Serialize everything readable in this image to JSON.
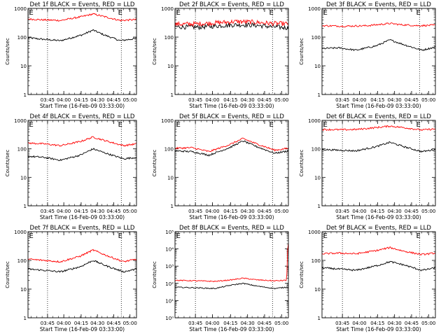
{
  "figure": {
    "xtick_labels": [
      "03:45",
      "04:00",
      "04:15",
      "04:30",
      "04:45",
      "05:00"
    ],
    "xlabel": "Start Time (16-Feb-09 03:33:00)",
    "ylabel": "Counts/sec",
    "colors": {
      "events": "#000000",
      "lld": "#ff0000",
      "axes": "#000000"
    }
  },
  "chart_data": [
    {
      "type": "line",
      "title": "Det 1f BLACK = Events, RED = LLD",
      "ylabel": "Counts/sec",
      "xlabel": "Start Time (16-Feb-09 03:33:00)",
      "yscale": "log",
      "ylim": [
        1,
        1000
      ],
      "yticks": [
        "1",
        "10",
        "100",
        "1000"
      ],
      "xticks": [
        "03:45",
        "04:00",
        "04:15",
        "04:30",
        "04:45",
        "05:00"
      ],
      "markers": [
        "E",
        "E"
      ],
      "series": [
        {
          "key": "events",
          "color": "#000000",
          "anchors": [
            [
              0,
              95
            ],
            [
              0.12,
              85
            ],
            [
              0.3,
              75
            ],
            [
              0.5,
              120
            ],
            [
              0.6,
              175
            ],
            [
              0.7,
              120
            ],
            [
              0.85,
              75
            ],
            [
              1,
              90
            ]
          ]
        },
        {
          "key": "lld",
          "color": "#ff0000",
          "anchors": [
            [
              0,
              430
            ],
            [
              0.12,
              400
            ],
            [
              0.3,
              380
            ],
            [
              0.5,
              520
            ],
            [
              0.6,
              640
            ],
            [
              0.7,
              520
            ],
            [
              0.85,
              380
            ],
            [
              1,
              410
            ]
          ]
        }
      ]
    },
    {
      "type": "line",
      "title": "Det 2f BLACK = Events, RED = LLD",
      "ylabel": "Counts/sec",
      "xlabel": "Start Time (16-Feb-09 03:33:00)",
      "yscale": "log",
      "ylim": [
        1,
        1000
      ],
      "yticks": [
        "1",
        "10",
        "100",
        "1000"
      ],
      "xticks": [
        "03:45",
        "04:00",
        "04:15",
        "04:30",
        "04:45",
        "05:00"
      ],
      "markers": [
        "E",
        "E"
      ],
      "series": [
        {
          "key": "events",
          "color": "#000000",
          "anchors": [
            [
              0,
              230
            ],
            [
              0.2,
              220
            ],
            [
              0.4,
              250
            ],
            [
              0.55,
              270
            ],
            [
              0.7,
              260
            ],
            [
              0.85,
              230
            ],
            [
              1,
              210
            ]
          ]
        },
        {
          "key": "lld",
          "color": "#ff0000",
          "anchors": [
            [
              0,
              280
            ],
            [
              0.2,
              290
            ],
            [
              0.4,
              320
            ],
            [
              0.55,
              350
            ],
            [
              0.7,
              330
            ],
            [
              0.85,
              300
            ],
            [
              1,
              290
            ]
          ]
        }
      ]
    },
    {
      "type": "line",
      "title": "Det 3f BLACK = Events, RED = LLD",
      "ylabel": "Counts/sec",
      "xlabel": "Start Time (16-Feb-09 03:33:00)",
      "yscale": "log",
      "ylim": [
        1,
        1000
      ],
      "yticks": [
        "1",
        "10",
        "100",
        "1000"
      ],
      "xticks": [
        "03:45",
        "04:00",
        "04:15",
        "04:30",
        "04:45",
        "05:00"
      ],
      "markers": [
        "E",
        "E"
      ],
      "series": [
        {
          "key": "events",
          "color": "#000000",
          "anchors": [
            [
              0,
              40
            ],
            [
              0.15,
              42
            ],
            [
              0.3,
              35
            ],
            [
              0.48,
              50
            ],
            [
              0.6,
              80
            ],
            [
              0.72,
              55
            ],
            [
              0.88,
              35
            ],
            [
              1,
              45
            ]
          ]
        },
        {
          "key": "lld",
          "color": "#ff0000",
          "anchors": [
            [
              0,
              250
            ],
            [
              0.2,
              240
            ],
            [
              0.4,
              250
            ],
            [
              0.6,
              300
            ],
            [
              0.7,
              270
            ],
            [
              0.85,
              250
            ],
            [
              1,
              260
            ]
          ]
        }
      ]
    },
    {
      "type": "line",
      "title": "Det 4f BLACK = Events, RED = LLD",
      "ylabel": "Counts/sec",
      "xlabel": "Start Time (16-Feb-09 03:33:00)",
      "yscale": "log",
      "ylim": [
        1,
        1000
      ],
      "yticks": [
        "1",
        "10",
        "100",
        "1000"
      ],
      "xticks": [
        "03:45",
        "04:00",
        "04:15",
        "04:30",
        "04:45",
        "05:00"
      ],
      "markers": [
        "E",
        "E"
      ],
      "series": [
        {
          "key": "events",
          "color": "#000000",
          "anchors": [
            [
              0,
              55
            ],
            [
              0.15,
              50
            ],
            [
              0.3,
              40
            ],
            [
              0.48,
              60
            ],
            [
              0.6,
              100
            ],
            [
              0.72,
              70
            ],
            [
              0.88,
              45
            ],
            [
              1,
              50
            ]
          ]
        },
        {
          "key": "lld",
          "color": "#ff0000",
          "anchors": [
            [
              0,
              160
            ],
            [
              0.15,
              150
            ],
            [
              0.3,
              130
            ],
            [
              0.48,
              180
            ],
            [
              0.6,
              260
            ],
            [
              0.72,
              190
            ],
            [
              0.88,
              130
            ],
            [
              1,
              150
            ]
          ]
        }
      ]
    },
    {
      "type": "line",
      "title": "Det 5f BLACK = Events, RED = LLD",
      "ylabel": "Counts/sec",
      "xlabel": "Start Time (16-Feb-09 03:33:00)",
      "yscale": "log",
      "ylim": [
        1,
        1000
      ],
      "yticks": [
        "1",
        "10",
        "100",
        "1000"
      ],
      "xticks": [
        "03:45",
        "04:00",
        "04:15",
        "04:30",
        "04:45",
        "05:00"
      ],
      "markers": [
        "E",
        "E"
      ],
      "series": [
        {
          "key": "events",
          "color": "#000000",
          "anchors": [
            [
              0,
              85
            ],
            [
              0.15,
              80
            ],
            [
              0.3,
              60
            ],
            [
              0.48,
              110
            ],
            [
              0.6,
              190
            ],
            [
              0.72,
              120
            ],
            [
              0.88,
              70
            ],
            [
              1,
              85
            ]
          ]
        },
        {
          "key": "lld",
          "color": "#ff0000",
          "anchors": [
            [
              0,
              105
            ],
            [
              0.15,
              110
            ],
            [
              0.3,
              80
            ],
            [
              0.48,
              140
            ],
            [
              0.6,
              230
            ],
            [
              0.72,
              150
            ],
            [
              0.88,
              90
            ],
            [
              1,
              105
            ]
          ]
        }
      ]
    },
    {
      "type": "line",
      "title": "Det 6f BLACK = Events, RED = LLD",
      "ylabel": "Counts/sec",
      "xlabel": "Start Time (16-Feb-09 03:33:00)",
      "yscale": "log",
      "ylim": [
        1,
        1000
      ],
      "yticks": [
        "1",
        "10",
        "100",
        "1000"
      ],
      "xticks": [
        "03:45",
        "04:00",
        "04:15",
        "04:30",
        "04:45",
        "05:00"
      ],
      "markers": [
        "E",
        "E"
      ],
      "series": [
        {
          "key": "events",
          "color": "#000000",
          "anchors": [
            [
              0,
              95
            ],
            [
              0.15,
              90
            ],
            [
              0.3,
              85
            ],
            [
              0.48,
              120
            ],
            [
              0.6,
              170
            ],
            [
              0.72,
              120
            ],
            [
              0.88,
              80
            ],
            [
              1,
              95
            ]
          ]
        },
        {
          "key": "lld",
          "color": "#ff0000",
          "anchors": [
            [
              0,
              480
            ],
            [
              0.15,
              470
            ],
            [
              0.3,
              480
            ],
            [
              0.48,
              560
            ],
            [
              0.6,
              630
            ],
            [
              0.72,
              560
            ],
            [
              0.88,
              460
            ],
            [
              1,
              500
            ]
          ]
        }
      ]
    },
    {
      "type": "line",
      "title": "Det 7f BLACK = Events, RED = LLD",
      "ylabel": "Counts/sec",
      "xlabel": "Start Time (16-Feb-09 03:33:00)",
      "yscale": "log",
      "ylim": [
        1,
        1000
      ],
      "yticks": [
        "1",
        "10",
        "100",
        "1000"
      ],
      "xticks": [
        "03:45",
        "04:00",
        "04:15",
        "04:30",
        "04:45",
        "05:00"
      ],
      "markers": [
        "E",
        "E"
      ],
      "series": [
        {
          "key": "events",
          "color": "#000000",
          "anchors": [
            [
              0,
              50
            ],
            [
              0.15,
              45
            ],
            [
              0.3,
              40
            ],
            [
              0.48,
              60
            ],
            [
              0.6,
              100
            ],
            [
              0.72,
              65
            ],
            [
              0.88,
              40
            ],
            [
              1,
              50
            ]
          ]
        },
        {
          "key": "lld",
          "color": "#ff0000",
          "anchors": [
            [
              0,
              110
            ],
            [
              0.15,
              100
            ],
            [
              0.3,
              90
            ],
            [
              0.48,
              140
            ],
            [
              0.6,
              230
            ],
            [
              0.72,
              150
            ],
            [
              0.88,
              90
            ],
            [
              1,
              110
            ]
          ]
        }
      ]
    },
    {
      "type": "line",
      "title": "Det 8f BLACK = Events, RED = LLD",
      "ylabel": "Counts/sec",
      "xlabel": "Start Time (16-Feb-09 03:33:00)",
      "yscale": "log",
      "ylim": [
        1,
        100000
      ],
      "yticks": [
        "10⁰",
        "10¹",
        "10²",
        "10³",
        "10⁴",
        "10⁵"
      ],
      "xticks": [
        "03:45",
        "04:00",
        "04:15",
        "04:30",
        "04:45",
        "05:00"
      ],
      "markers": [
        "E",
        "E"
      ],
      "series": [
        {
          "key": "events",
          "color": "#000000",
          "anchors": [
            [
              0,
              60
            ],
            [
              0.2,
              55
            ],
            [
              0.35,
              50
            ],
            [
              0.5,
              80
            ],
            [
              0.6,
              100
            ],
            [
              0.72,
              70
            ],
            [
              0.88,
              50
            ],
            [
              0.98,
              60
            ],
            [
              1,
              60
            ]
          ]
        },
        {
          "key": "lld",
          "color": "#ff0000",
          "anchors": [
            [
              0,
              150
            ],
            [
              0.2,
              140
            ],
            [
              0.35,
              130
            ],
            [
              0.5,
              160
            ],
            [
              0.6,
              200
            ],
            [
              0.72,
              160
            ],
            [
              0.88,
              140
            ],
            [
              0.985,
              150
            ],
            [
              0.99,
              2000
            ],
            [
              0.995,
              20000
            ],
            [
              1,
              20000
            ]
          ]
        }
      ]
    },
    {
      "type": "line",
      "title": "Det 9f BLACK = Events, RED = LLD",
      "ylabel": "Counts/sec",
      "xlabel": "Start Time (16-Feb-09 03:33:00)",
      "yscale": "log",
      "ylim": [
        1,
        1000
      ],
      "yticks": [
        "1",
        "10",
        "100",
        "1000"
      ],
      "xticks": [
        "03:45",
        "04:00",
        "04:15",
        "04:30",
        "04:45",
        "05:00"
      ],
      "markers": [
        "E",
        "E"
      ],
      "series": [
        {
          "key": "events",
          "color": "#000000",
          "anchors": [
            [
              0,
              55
            ],
            [
              0.15,
              50
            ],
            [
              0.3,
              45
            ],
            [
              0.48,
              65
            ],
            [
              0.6,
              90
            ],
            [
              0.72,
              70
            ],
            [
              0.88,
              45
            ],
            [
              1,
              55
            ]
          ]
        },
        {
          "key": "lld",
          "color": "#ff0000",
          "anchors": [
            [
              0,
              170
            ],
            [
              0.15,
              180
            ],
            [
              0.3,
              170
            ],
            [
              0.48,
              220
            ],
            [
              0.6,
              280
            ],
            [
              0.72,
              210
            ],
            [
              0.88,
              160
            ],
            [
              1,
              180
            ]
          ]
        }
      ]
    }
  ]
}
